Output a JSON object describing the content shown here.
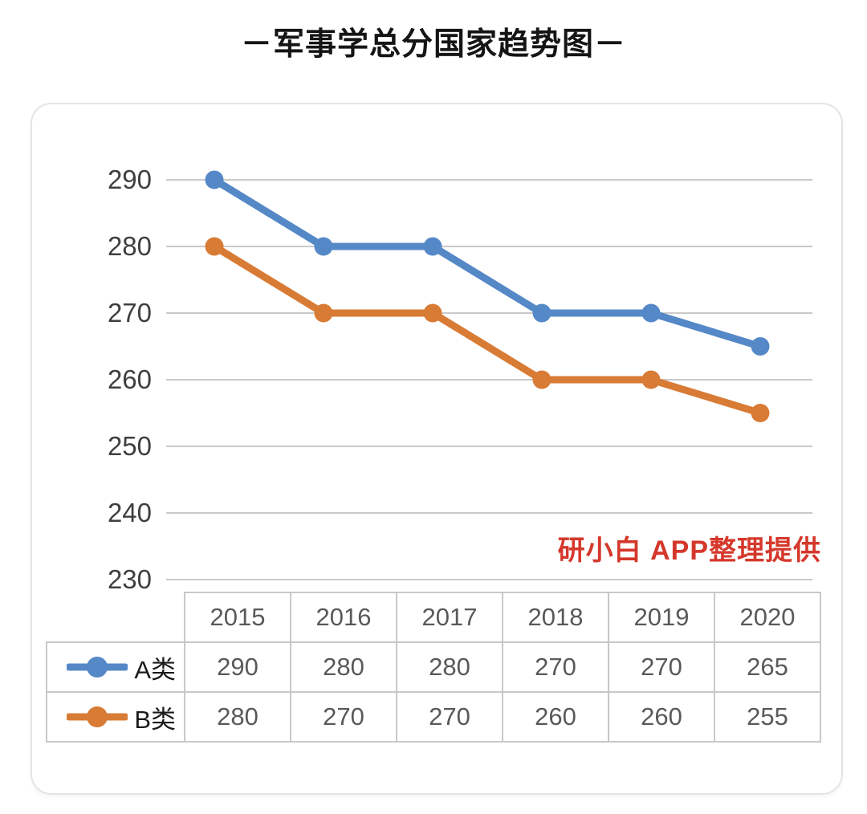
{
  "page": {
    "title": "－军事学总分国家趋势图－",
    "watermark": "研小白 APP整理提供"
  },
  "colors": {
    "series_a": "#5588C7",
    "series_b": "#D87B35",
    "watermark": "#D5382B",
    "grid": "#C9C9C9",
    "axis_text": "#3F3F3F",
    "table_text": "#595959",
    "table_border": "#C8C8C8",
    "legend_text": "#1A1A1A"
  },
  "chart_data": {
    "type": "line",
    "title": "军事学总分国家趋势图",
    "categories": [
      "2015",
      "2016",
      "2017",
      "2018",
      "2019",
      "2020"
    ],
    "series": [
      {
        "name": "A类",
        "color": "#5588C7",
        "values": [
          290,
          280,
          280,
          270,
          270,
          265
        ]
      },
      {
        "name": "B类",
        "color": "#D87B35",
        "values": [
          280,
          270,
          270,
          260,
          260,
          255
        ]
      }
    ],
    "yticks": [
      290,
      280,
      270,
      260,
      250,
      240,
      230
    ],
    "ylim": [
      230,
      290
    ],
    "grid": true,
    "marker": "circle",
    "legend_position": "table-left"
  }
}
